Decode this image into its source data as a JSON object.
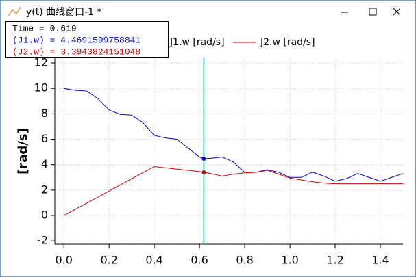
{
  "window": {
    "title": "y(t) 曲线窗口-1 *"
  },
  "chart_data": {
    "type": "line",
    "y_label": "[rad/s]",
    "x": [
      0,
      0.05,
      0.1,
      0.15,
      0.2,
      0.25,
      0.3,
      0.35,
      0.4,
      0.45,
      0.5,
      0.55,
      0.6,
      0.619,
      0.65,
      0.7,
      0.75,
      0.8,
      0.85,
      0.9,
      0.95,
      1.0,
      1.05,
      1.1,
      1.15,
      1.2,
      1.25,
      1.3,
      1.35,
      1.4,
      1.45,
      1.5
    ],
    "series": [
      {
        "name": "J1.w [rad/s]",
        "color": "#0000cc",
        "values": [
          10,
          9.85,
          9.8,
          9.2,
          8.3,
          7.95,
          7.9,
          7.3,
          6.3,
          6.1,
          6.0,
          5.3,
          4.6,
          4.47,
          4.5,
          4.6,
          4.2,
          3.4,
          3.4,
          3.6,
          3.4,
          3.0,
          3.0,
          3.4,
          3.1,
          2.7,
          2.9,
          3.3,
          3.0,
          2.7,
          3.0,
          3.3
        ]
      },
      {
        "name": "J2.w [rad/s]",
        "color": "#cc0000",
        "values": [
          0,
          0.48,
          0.96,
          1.44,
          1.93,
          2.41,
          2.89,
          3.37,
          3.85,
          3.75,
          3.65,
          3.55,
          3.45,
          3.39,
          3.3,
          3.1,
          3.25,
          3.35,
          3.4,
          3.55,
          3.25,
          2.95,
          2.8,
          2.65,
          2.55,
          2.5,
          2.5,
          2.5,
          2.5,
          2.5,
          2.5,
          2.5
        ]
      }
    ],
    "xlim": [
      -0.04,
      1.5
    ],
    "ylim": [
      -2.26,
      12.38
    ],
    "xticks": [
      {
        "value": 0,
        "label": "0.0"
      },
      {
        "value": 0.2,
        "label": "0.2"
      },
      {
        "value": 0.4,
        "label": "0.4"
      },
      {
        "value": 0.6,
        "label": "0.6"
      },
      {
        "value": 0.8,
        "label": "0.8"
      },
      {
        "value": 1,
        "label": "1.0"
      },
      {
        "value": 1.2,
        "label": "1.2"
      },
      {
        "value": 1.4,
        "label": "1.4"
      }
    ],
    "yticks": [
      -2,
      0,
      2,
      4,
      6,
      8,
      10,
      12
    ],
    "grid": true,
    "cursor": {
      "x": 0.619,
      "label": "Time = 0.619",
      "color": "#40e0d0"
    },
    "readouts": [
      {
        "value": 4.4691599758841,
        "label": "(J1.w) = 4.4691599758841"
      },
      {
        "value": 3.3943824151048,
        "label": "(J2.w) = 3.3943824151048"
      }
    ]
  }
}
